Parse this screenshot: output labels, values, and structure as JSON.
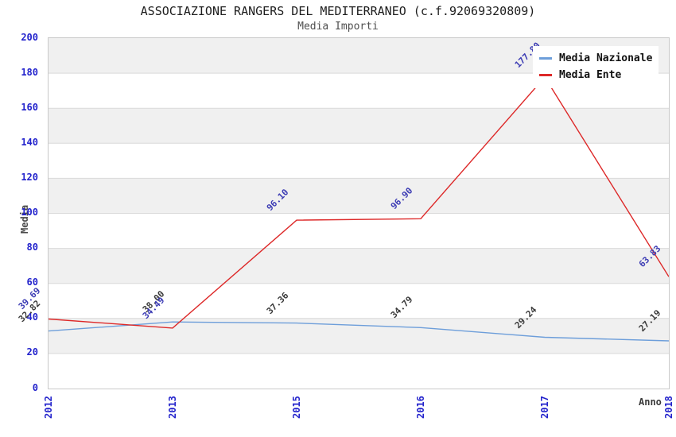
{
  "title": "ASSOCIAZIONE RANGERS DEL MEDITERRANEO (c.f.92069320809)",
  "subtitle": "Media Importi",
  "y_axis": {
    "label": "Media",
    "min": 0,
    "max": 200,
    "tick_step": 20,
    "tick_color": "#2323cc"
  },
  "x_axis": {
    "label": "Anno",
    "tick_color": "#2323cc"
  },
  "legend": {
    "position": "top-right",
    "items": [
      {
        "label": "Media Nazionale",
        "color": "#6d9eda"
      },
      {
        "label": "Media Ente",
        "color": "#dd2828"
      }
    ]
  },
  "colors": {
    "band_gray": "#f0f0f0",
    "band_white": "#ffffff",
    "gridline": "#d9d9d9",
    "plot_border": "#c9c9c9",
    "title_text": "#1d1d1d",
    "subtitle_text": "#4f4f4f"
  },
  "chart_data": {
    "type": "line",
    "title": "ASSOCIAZIONE RANGERS DEL MEDITERRANEO (c.f.92069320809)",
    "subtitle": "Media Importi",
    "xlabel": "Anno",
    "ylabel": "Media",
    "ylim": [
      0,
      200
    ],
    "y_tick_step": 20,
    "grid": "horizontal gridlines every 20 units with alternating gray/white bands",
    "legend_position": "top-right",
    "categories": [
      "2012",
      "2013",
      "2015",
      "2016",
      "2017",
      "2018"
    ],
    "series": [
      {
        "name": "Media Nazionale",
        "line_color": "#6d9eda",
        "label_color": "#3a3a3a",
        "values": [
          32.82,
          38.0,
          37.36,
          34.79,
          29.24,
          27.19
        ],
        "point_labels": [
          "32.82",
          "38.00",
          "37.36",
          "34.79",
          "29.24",
          "27.19"
        ],
        "hidden_label_indexes": []
      },
      {
        "name": "Media Ente",
        "line_color": "#dd2828",
        "label_color": "#3c3cb4",
        "values": [
          39.69,
          34.49,
          96.1,
          96.9,
          177.8,
          63.83
        ],
        "point_labels": [
          "39.69",
          "34.49",
          "96.10",
          "96.90",
          "177.80",
          "63.83"
        ],
        "hidden_label_indexes": [
          4
        ],
        "note": "2017 value estimated from line position; its point label is occluded by the legend box"
      }
    ]
  }
}
